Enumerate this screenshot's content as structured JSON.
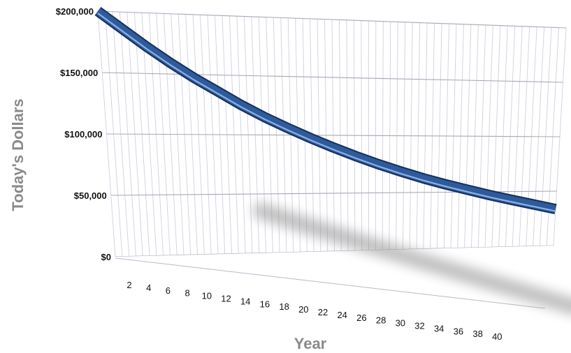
{
  "chart_data": {
    "type": "line",
    "xlabel": "Year",
    "ylabel": "Today's Dollars",
    "ylim": [
      0,
      200000
    ],
    "xlim": [
      0,
      40
    ],
    "grid": true,
    "x_ticks": [
      "2",
      "4",
      "6",
      "8",
      "10",
      "12",
      "14",
      "16",
      "18",
      "20",
      "22",
      "24",
      "26",
      "28",
      "30",
      "32",
      "34",
      "36",
      "38",
      "40"
    ],
    "y_ticks": [
      "$0",
      "$50,000",
      "$100,000",
      "$150,000",
      "$200,000"
    ],
    "y_tick_values": [
      0,
      50000,
      100000,
      150000,
      200000
    ],
    "series": [
      {
        "color": "#2d5b9c",
        "x": [
          0,
          2,
          4,
          6,
          8,
          10,
          12,
          14,
          16,
          18,
          20,
          22,
          24,
          26,
          28,
          30,
          32,
          34,
          36,
          38,
          40
        ],
        "values": [
          200000,
          186000,
          172000,
          159000,
          147000,
          136000,
          125000,
          115000,
          106000,
          97500,
          89500,
          82000,
          75000,
          68500,
          62500,
          57000,
          52000,
          47000,
          42500,
          38000,
          33500
        ]
      }
    ]
  }
}
